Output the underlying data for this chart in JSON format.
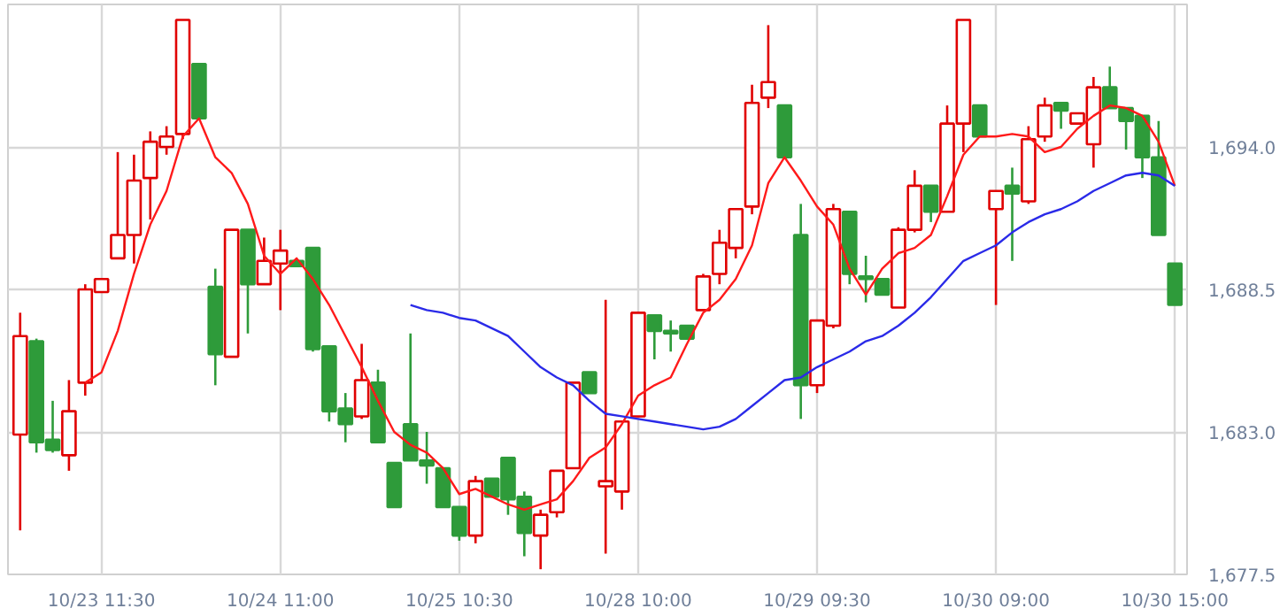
{
  "chart_data": {
    "type": "candlestick",
    "categories": [
      null,
      null,
      null,
      null,
      null,
      "10/23 11:30",
      null,
      null,
      null,
      null,
      null,
      null,
      null,
      null,
      null,
      null,
      "10/24 11:00",
      null,
      null,
      null,
      null,
      null,
      null,
      null,
      null,
      null,
      null,
      "10/25 10:30",
      null,
      null,
      null,
      null,
      null,
      null,
      null,
      null,
      null,
      null,
      "10/28 10:00",
      null,
      null,
      null,
      null,
      null,
      null,
      null,
      null,
      null,
      null,
      "10/29 09:30",
      null,
      null,
      null,
      null,
      null,
      null,
      null,
      null,
      null,
      null,
      "10/30 09:00",
      null,
      null,
      null,
      null,
      null,
      null,
      null,
      null,
      null,
      null,
      "10/30 15:00"
    ],
    "ohlc": [
      [
        1682.9,
        1687.6,
        1679.2,
        1686.7
      ],
      [
        1686.5,
        1686.6,
        1682.2,
        1682.6
      ],
      [
        1682.7,
        1684.2,
        1682.2,
        1682.3
      ],
      [
        1682.1,
        1685.0,
        1681.5,
        1683.8
      ],
      [
        1684.9,
        1688.7,
        1684.4,
        1688.5
      ],
      [
        1688.4,
        1688.9,
        1688.4,
        1688.9
      ],
      [
        1689.7,
        1693.8,
        1689.7,
        1690.6
      ],
      [
        1690.6,
        1693.7,
        1689.5,
        1692.7
      ],
      [
        1692.8,
        1694.6,
        1691.2,
        1694.2
      ],
      [
        1694.0,
        1694.8,
        1693.7,
        1694.4
      ],
      [
        1694.5,
        1698.9,
        1694.3,
        1698.9
      ],
      [
        1697.2,
        1697.2,
        1695.1,
        1695.1
      ],
      [
        1688.6,
        1689.3,
        1684.8,
        1686.0
      ],
      [
        1685.9,
        1690.8,
        1685.9,
        1690.8
      ],
      [
        1690.8,
        1690.8,
        1686.8,
        1688.7
      ],
      [
        1688.7,
        1690.5,
        1688.7,
        1689.6
      ],
      [
        1689.5,
        1690.8,
        1687.7,
        1690.0
      ],
      [
        1689.6,
        1689.6,
        1689.4,
        1689.4
      ],
      [
        1690.1,
        1690.1,
        1686.1,
        1686.2
      ],
      [
        1686.3,
        1686.3,
        1683.4,
        1683.8
      ],
      [
        1683.9,
        1684.5,
        1682.6,
        1683.3
      ],
      [
        1683.6,
        1686.4,
        1683.5,
        1685.0
      ],
      [
        1684.9,
        1685.4,
        1682.6,
        1682.6
      ],
      [
        1681.8,
        1681.8,
        1680.1,
        1680.1
      ],
      [
        1683.3,
        1686.8,
        1681.9,
        1681.9
      ],
      [
        1681.9,
        1683.0,
        1681.0,
        1681.7
      ],
      [
        1681.6,
        1681.6,
        1680.1,
        1680.1
      ],
      [
        1680.1,
        1680.1,
        1678.8,
        1679.0
      ],
      [
        1679.0,
        1681.3,
        1678.7,
        1681.1
      ],
      [
        1681.2,
        1681.2,
        1680.5,
        1680.5
      ],
      [
        1682.0,
        1682.0,
        1679.8,
        1680.4
      ],
      [
        1680.5,
        1680.7,
        1678.2,
        1679.1
      ],
      [
        1679.0,
        1680.0,
        1677.7,
        1679.8
      ],
      [
        1679.9,
        1681.5,
        1679.7,
        1681.5
      ],
      [
        1681.6,
        1684.9,
        1681.6,
        1684.9
      ],
      [
        1685.3,
        1685.3,
        1684.5,
        1684.5
      ],
      [
        1680.9,
        1688.1,
        1678.3,
        1681.1
      ],
      [
        1680.7,
        1683.4,
        1680.0,
        1683.4
      ],
      [
        1683.6,
        1687.6,
        1683.6,
        1687.6
      ],
      [
        1687.5,
        1687.5,
        1685.8,
        1686.9
      ],
      [
        1686.9,
        1687.3,
        1686.1,
        1686.8
      ],
      [
        1687.1,
        1687.1,
        1686.6,
        1686.6
      ],
      [
        1687.7,
        1689.1,
        1687.7,
        1689.0
      ],
      [
        1689.1,
        1690.8,
        1688.7,
        1690.3
      ],
      [
        1690.1,
        1691.6,
        1689.7,
        1691.6
      ],
      [
        1691.7,
        1696.4,
        1691.4,
        1695.7
      ],
      [
        1695.9,
        1698.7,
        1695.5,
        1696.5
      ],
      [
        1695.6,
        1695.6,
        1693.6,
        1693.6
      ],
      [
        1690.6,
        1691.8,
        1683.5,
        1684.8
      ],
      [
        1684.8,
        1687.3,
        1684.5,
        1687.3
      ],
      [
        1687.1,
        1691.8,
        1687.0,
        1691.6
      ],
      [
        1691.5,
        1691.5,
        1688.7,
        1689.1
      ],
      [
        1689.0,
        1689.8,
        1688.0,
        1688.9
      ],
      [
        1688.9,
        1688.9,
        1688.3,
        1688.3
      ],
      [
        1687.8,
        1690.9,
        1687.8,
        1690.8
      ],
      [
        1690.8,
        1693.1,
        1690.7,
        1692.5
      ],
      [
        1692.5,
        1692.5,
        1691.1,
        1691.5
      ],
      [
        1691.5,
        1695.6,
        1691.5,
        1694.9
      ],
      [
        1694.9,
        1698.9,
        1693.8,
        1698.9
      ],
      [
        1695.6,
        1695.6,
        1694.4,
        1694.4
      ],
      [
        1691.6,
        1692.3,
        1687.9,
        1692.3
      ],
      [
        1692.5,
        1693.2,
        1689.6,
        1692.2
      ],
      [
        1691.9,
        1694.8,
        1691.8,
        1694.3
      ],
      [
        1694.4,
        1695.9,
        1694.2,
        1695.6
      ],
      [
        1695.7,
        1695.7,
        1694.7,
        1695.4
      ],
      [
        1694.9,
        1695.3,
        1694.9,
        1695.3
      ],
      [
        1694.1,
        1696.7,
        1693.2,
        1696.3
      ],
      [
        1696.3,
        1697.1,
        1695.5,
        1695.5
      ],
      [
        1695.5,
        1695.5,
        1693.9,
        1695.0
      ],
      [
        1695.2,
        1695.2,
        1692.8,
        1693.6
      ],
      [
        1693.6,
        1695.0,
        1690.6,
        1690.6
      ],
      [
        1689.5,
        1689.5,
        1687.9,
        1687.9
      ]
    ],
    "colors": [
      "#e00000",
      "#2e9b3a",
      "#2e9b3a",
      "#e00000",
      "#e00000",
      "#e00000",
      "#e00000",
      "#e00000",
      "#e00000",
      "#e00000",
      "#e00000",
      "#2e9b3a",
      "#2e9b3a",
      "#e00000",
      "#2e9b3a",
      "#e00000",
      "#e00000",
      "#2e9b3a",
      "#2e9b3a",
      "#2e9b3a",
      "#2e9b3a",
      "#e00000",
      "#2e9b3a",
      "#2e9b3a",
      "#2e9b3a",
      "#2e9b3a",
      "#2e9b3a",
      "#2e9b3a",
      "#e00000",
      "#2e9b3a",
      "#2e9b3a",
      "#2e9b3a",
      "#e00000",
      "#e00000",
      "#e00000",
      "#2e9b3a",
      "#e00000",
      "#e00000",
      "#e00000",
      "#2e9b3a",
      "#2e9b3a",
      "#2e9b3a",
      "#e00000",
      "#e00000",
      "#e00000",
      "#e00000",
      "#e00000",
      "#2e9b3a",
      "#2e9b3a",
      "#e00000",
      "#e00000",
      "#2e9b3a",
      "#2e9b3a",
      "#2e9b3a",
      "#e00000",
      "#e00000",
      "#2e9b3a",
      "#e00000",
      "#e00000",
      "#2e9b3a",
      "#e00000",
      "#2e9b3a",
      "#e00000",
      "#e00000",
      "#2e9b3a",
      "#e00000",
      "#e00000",
      "#2e9b3a",
      "#2e9b3a",
      "#2e9b3a",
      "#2e9b3a",
      "#2e9b3a"
    ],
    "series": [
      {
        "type": "line",
        "color": "#ff1a1a",
        "values": [
          null,
          null,
          null,
          null,
          1684.9,
          1685.3,
          1686.9,
          1689.1,
          1691.0,
          1692.3,
          1694.4,
          1695.1,
          1693.6,
          1693.0,
          1691.8,
          1689.8,
          1689.1,
          1689.7,
          1688.9,
          1687.9,
          1686.7,
          1685.5,
          1684.2,
          1683.0,
          1682.5,
          1682.2,
          1681.6,
          1680.6,
          1680.8,
          1680.5,
          1680.2,
          1680.0,
          1680.2,
          1680.4,
          1681.1,
          1682.0,
          1682.4,
          1683.3,
          1684.4,
          1684.8,
          1685.1,
          1686.4,
          1687.6,
          1688.1,
          1688.9,
          1690.2,
          1692.6,
          1693.6,
          1692.7,
          1691.7,
          1691.0,
          1689.3,
          1688.3,
          1689.3,
          1689.9,
          1690.1,
          1690.6,
          1692.1,
          1693.7,
          1694.4,
          1694.4,
          1694.5,
          1694.4,
          1693.8,
          1694.0,
          1694.7,
          1695.2,
          1695.6,
          1695.5,
          1695.2,
          1694.2,
          1692.5
        ]
      },
      {
        "type": "line",
        "color": "#2a2ae8",
        "values": [
          null,
          null,
          null,
          null,
          null,
          null,
          null,
          null,
          null,
          null,
          null,
          null,
          null,
          null,
          null,
          null,
          null,
          null,
          null,
          null,
          null,
          null,
          null,
          null,
          1687.9,
          1687.7,
          1687.6,
          1687.4,
          1687.3,
          1687.0,
          1686.7,
          1686.1,
          1685.5,
          1685.1,
          1684.8,
          1684.2,
          1683.7,
          1683.6,
          1683.5,
          1683.4,
          1683.3,
          1683.2,
          1683.1,
          1683.2,
          1683.5,
          1684.0,
          1684.5,
          1685.0,
          1685.1,
          1685.5,
          1685.8,
          1686.1,
          1686.5,
          1686.7,
          1687.1,
          1687.6,
          1688.2,
          1688.9,
          1689.6,
          1689.9,
          1690.2,
          1690.7,
          1691.1,
          1691.4,
          1691.6,
          1691.9,
          1692.3,
          1692.6,
          1692.9,
          1693.0,
          1692.9,
          1692.5
        ]
      }
    ],
    "ylim": [
      1677.5,
      1699.5
    ],
    "yticks": [
      {
        "value": 1677.5,
        "label": "1,677.5"
      },
      {
        "value": 1683.0,
        "label": "1,683.0"
      },
      {
        "value": 1688.5,
        "label": "1,688.5"
      },
      {
        "value": 1694.0,
        "label": "1,694.0"
      }
    ],
    "grid": true
  }
}
